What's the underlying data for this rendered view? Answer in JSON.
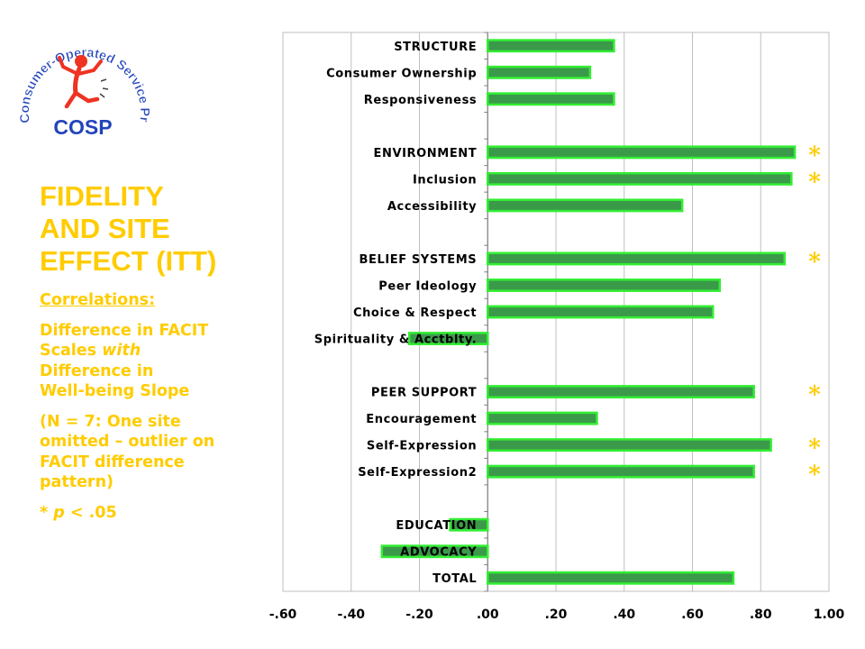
{
  "logo": {
    "arc_text": "Consumer-Operated Service Program",
    "abbr": "COSP"
  },
  "left_panel": {
    "title_lines": [
      "FIDELITY",
      "AND SITE",
      "EFFECT (ITT)"
    ],
    "correlations_label": "Correlations:",
    "desc_lines": [
      "Difference in FACIT",
      "Scales ",
      "with",
      "Difference in",
      "Well-being Slope"
    ],
    "note_lines": [
      "(N = 7:   One site",
      "omitted – outlier on",
      "FACIT difference",
      "pattern)"
    ],
    "sig_prefix": "* ",
    "sig_p": "p",
    "sig_suffix": " < .05"
  },
  "chart_data": {
    "type": "bar",
    "orientation": "horizontal",
    "categories": [
      "STRUCTURE",
      "Consumer Ownership",
      "Responsiveness",
      "",
      "ENVIRONMENT",
      "Inclusion",
      "Accessibility",
      "",
      "BELIEF SYSTEMS",
      "Peer Ideology",
      "Choice & Respect",
      "Spirituality & Acctblty.",
      "",
      "PEER SUPPORT",
      "Encouragement",
      "Self-Expression",
      "Self-Expression2",
      "",
      "EDUCATION",
      "ADVOCACY",
      "TOTAL"
    ],
    "values": [
      0.37,
      0.3,
      0.37,
      null,
      0.9,
      0.89,
      0.57,
      null,
      0.87,
      0.68,
      0.66,
      -0.23,
      null,
      0.78,
      0.32,
      0.83,
      0.78,
      null,
      -0.11,
      -0.31,
      0.72
    ],
    "significant": [
      false,
      false,
      false,
      false,
      true,
      true,
      false,
      false,
      true,
      false,
      false,
      false,
      false,
      true,
      false,
      true,
      true,
      false,
      false,
      false,
      false
    ],
    "star_symbol": "*",
    "xlim": [
      -0.6,
      1.0
    ],
    "xticks": [
      -0.6,
      -0.4,
      -0.2,
      0.0,
      0.2,
      0.4,
      0.6,
      0.8,
      1.0
    ],
    "xtick_labels": [
      "-.60",
      "-.40",
      "-.20",
      ".00",
      ".20",
      ".40",
      ".60",
      ".80",
      "1.00"
    ],
    "grid": true,
    "colors": {
      "bar_fill": "#3a9a4a",
      "bar_stroke": "#33ee33",
      "star": "#FFCC00",
      "grid": "#bfbfbf",
      "text": "#000000"
    }
  }
}
